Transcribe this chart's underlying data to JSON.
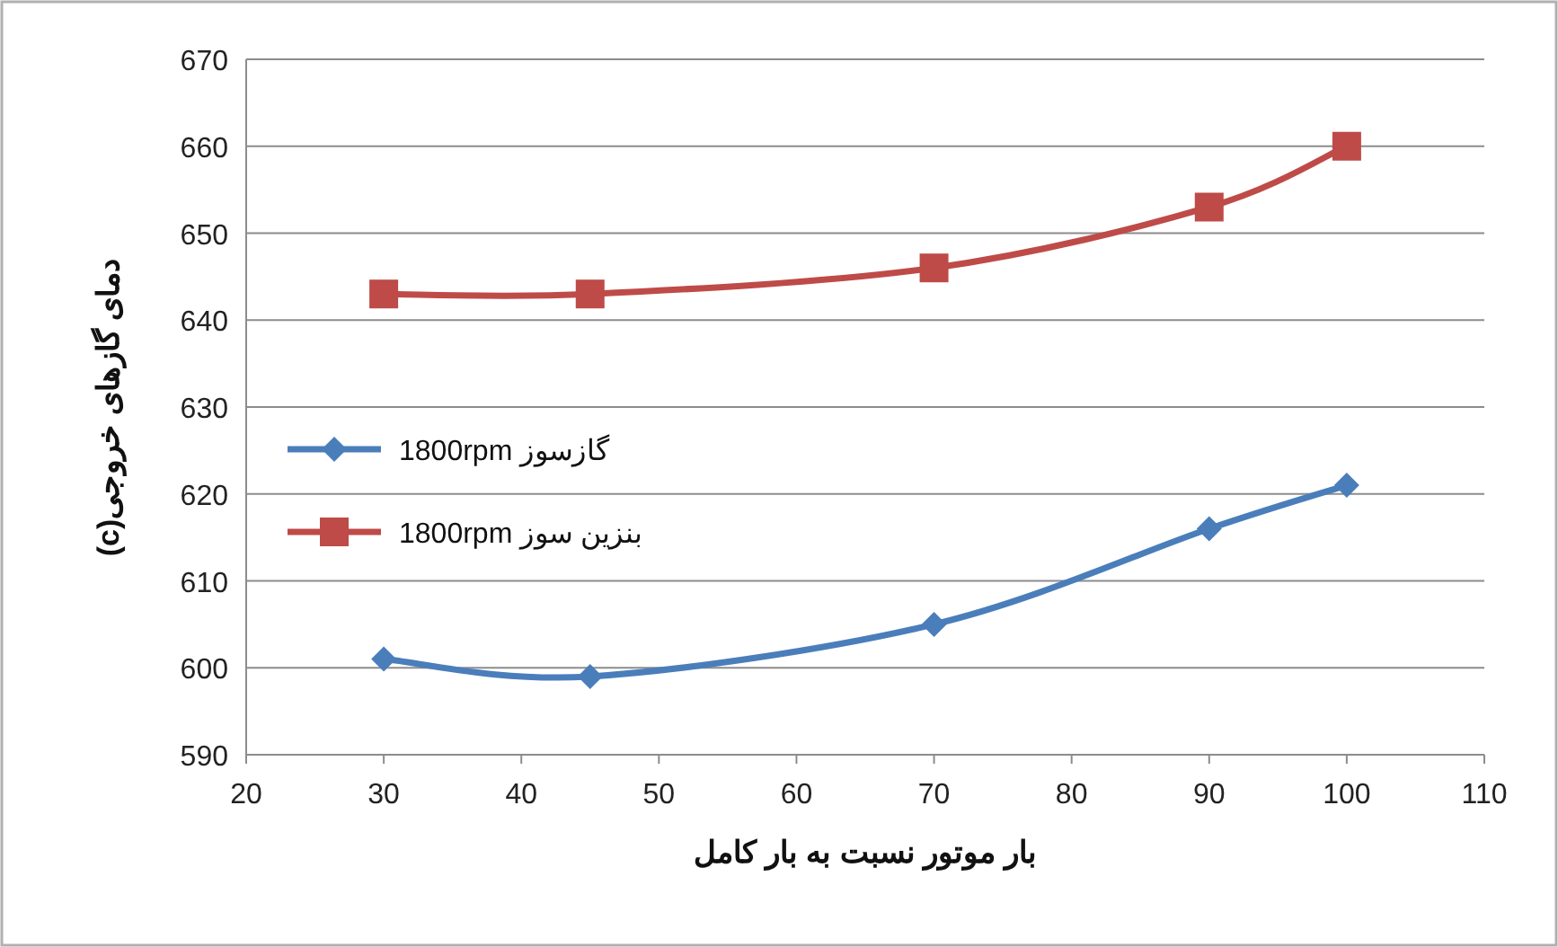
{
  "chart_data": {
    "type": "line",
    "xlabel": "بار موتور نسبت به بار کامل",
    "ylabel": "دمای گازهای خروجی(c)",
    "x": [
      30,
      45,
      70,
      90,
      100
    ],
    "series": [
      {
        "name": "گازسوز 1800rpm",
        "color": "#4a7ebb",
        "marker": "diamond",
        "values": [
          601,
          599,
          605,
          616,
          621
        ]
      },
      {
        "name": "بنزین سوز 1800rpm",
        "color": "#be4b48",
        "marker": "square",
        "values": [
          643,
          643,
          646,
          653,
          660
        ]
      }
    ],
    "xlim": [
      20,
      110
    ],
    "xticks": [
      20,
      30,
      40,
      50,
      60,
      70,
      80,
      90,
      100,
      110
    ],
    "ylim": [
      590,
      670
    ],
    "yticks": [
      590,
      600,
      610,
      620,
      630,
      640,
      650,
      660,
      670
    ],
    "grid": "y",
    "legend": "left",
    "line_style": "solid"
  }
}
